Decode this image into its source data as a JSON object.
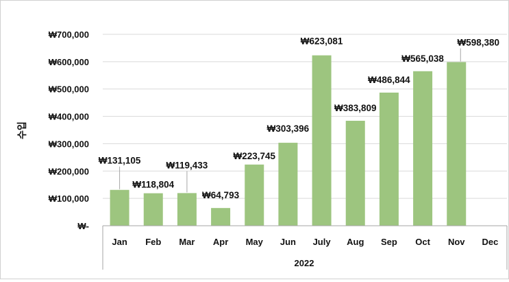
{
  "chart_data": {
    "type": "bar",
    "categories": [
      "Jan",
      "Feb",
      "Mar",
      "Apr",
      "May",
      "Jun",
      "July",
      "Aug",
      "Sep",
      "Oct",
      "Nov",
      "Dec"
    ],
    "group_label": "2022",
    "values": [
      131105,
      118804,
      119433,
      64793,
      223745,
      303396,
      623081,
      383809,
      486844,
      565038,
      598380,
      null
    ],
    "data_labels": [
      "₩131,105",
      "₩118,804",
      "₩119,433",
      "₩64,793",
      "₩223,745",
      "₩303,396",
      "₩623,081",
      "₩383,809",
      "₩486,844",
      "₩565,038",
      "₩598,380",
      ""
    ],
    "ylabel": "수입",
    "ylim": [
      0,
      700000
    ],
    "y_ticks": [
      0,
      100000,
      200000,
      300000,
      400000,
      500000,
      600000,
      700000
    ],
    "y_tick_labels": [
      "₩-",
      "₩100,000",
      "₩200,000",
      "₩300,000",
      "₩400,000",
      "₩500,000",
      "₩600,000",
      "₩700,000"
    ],
    "grid": true,
    "legend": "none",
    "colors": {
      "bar": "#9DC57F",
      "grid": "#d9d9d9",
      "axis": "#a6a6a6"
    }
  }
}
